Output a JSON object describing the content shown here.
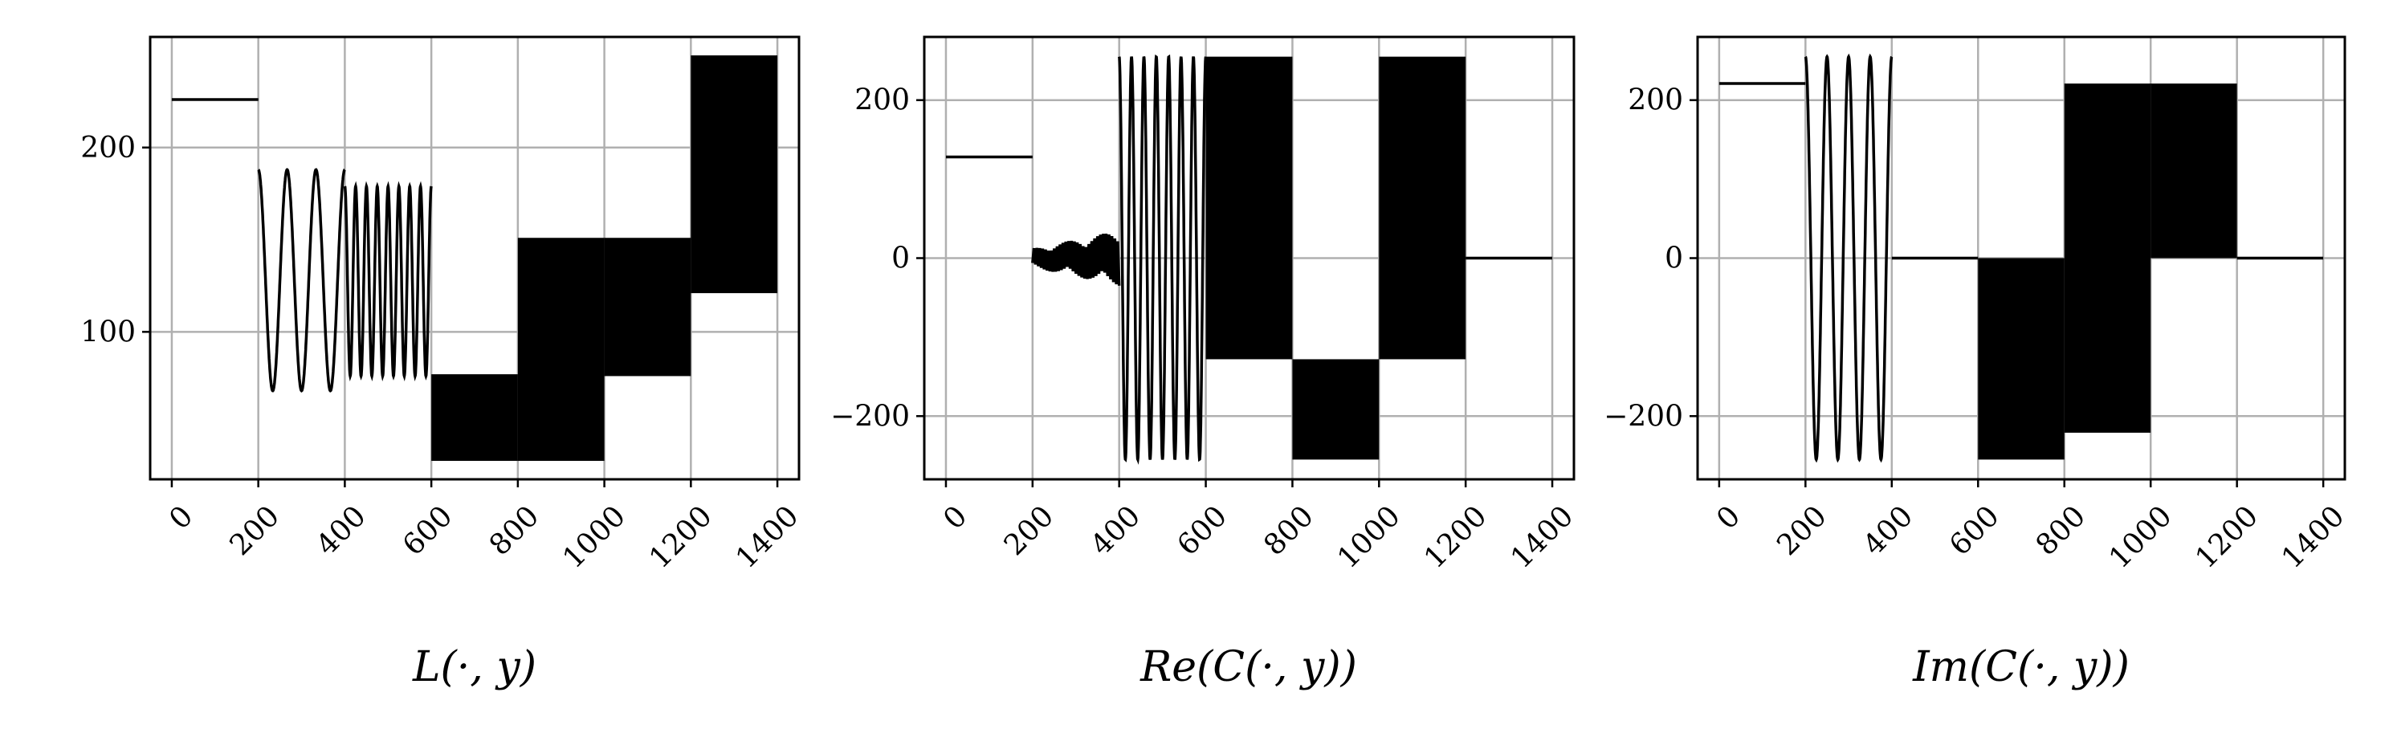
{
  "figure": {
    "background": "#ffffff",
    "line_color": "#000000",
    "grid_color": "#b0b0b0",
    "grid": true
  },
  "chart_data": [
    {
      "type": "line",
      "title": "",
      "xlabel": "L(·, y)",
      "ylabel": "",
      "xlim": [
        -50,
        1450
      ],
      "ylim": [
        20,
        260
      ],
      "xticks": [
        0,
        200,
        400,
        600,
        800,
        1000,
        1200,
        1400
      ],
      "xtick_labels": [
        "0",
        "200",
        "400",
        "600",
        "800",
        "1000",
        "1200",
        "1400"
      ],
      "yticks": [
        100,
        200
      ],
      "ytick_labels": [
        "100",
        "200"
      ],
      "segments": [
        {
          "x_range": [
            0,
            200
          ],
          "kind": "constant",
          "value": 226
        },
        {
          "x_range": [
            200,
            400
          ],
          "kind": "oscillation",
          "min": 68,
          "max": 188,
          "cycles": 3
        },
        {
          "x_range": [
            400,
            600
          ],
          "kind": "oscillation",
          "min": 76,
          "max": 179,
          "cycles": 8
        },
        {
          "x_range": [
            600,
            800
          ],
          "kind": "band",
          "min": 30,
          "max": 77
        },
        {
          "x_range": [
            800,
            1000
          ],
          "kind": "band",
          "min": 30,
          "max": 151
        },
        {
          "x_range": [
            1000,
            1200
          ],
          "kind": "band",
          "min": 76,
          "max": 151
        },
        {
          "x_range": [
            1200,
            1400
          ],
          "kind": "band",
          "min": 121,
          "max": 250
        }
      ]
    },
    {
      "type": "line",
      "title": "",
      "xlabel": "Re(C(·, y))",
      "ylabel": "",
      "xlim": [
        -50,
        1450
      ],
      "ylim": [
        -280,
        280
      ],
      "xticks": [
        0,
        200,
        400,
        600,
        800,
        1000,
        1200,
        1400
      ],
      "xtick_labels": [
        "0",
        "200",
        "400",
        "600",
        "800",
        "1000",
        "1200",
        "1400"
      ],
      "yticks": [
        -200,
        0,
        200
      ],
      "ytick_labels": [
        "−200",
        "0",
        "200"
      ],
      "segments": [
        {
          "x_range": [
            0,
            200
          ],
          "kind": "constant",
          "value": 128
        },
        {
          "x_range": [
            200,
            400
          ],
          "kind": "noise",
          "min": -35,
          "max": 35,
          "center": 0
        },
        {
          "x_range": [
            400,
            600
          ],
          "kind": "oscillation",
          "min": -255,
          "max": 255,
          "cycles": 7
        },
        {
          "x_range": [
            600,
            800
          ],
          "kind": "band",
          "min": -128,
          "max": 255
        },
        {
          "x_range": [
            800,
            1000
          ],
          "kind": "band",
          "min": -255,
          "max": -128
        },
        {
          "x_range": [
            1000,
            1200
          ],
          "kind": "band",
          "min": -128,
          "max": 255
        },
        {
          "x_range": [
            1200,
            1400
          ],
          "kind": "constant",
          "value": 0
        }
      ]
    },
    {
      "type": "line",
      "title": "",
      "xlabel": "Im(C(·, y))",
      "ylabel": "",
      "xlim": [
        -50,
        1450
      ],
      "ylim": [
        -280,
        280
      ],
      "xticks": [
        0,
        200,
        400,
        600,
        800,
        1000,
        1200,
        1400
      ],
      "xtick_labels": [
        "0",
        "200",
        "400",
        "600",
        "800",
        "1000",
        "1200",
        "1400"
      ],
      "yticks": [
        -200,
        0,
        200
      ],
      "ytick_labels": [
        "−200",
        "0",
        "200"
      ],
      "segments": [
        {
          "x_range": [
            0,
            200
          ],
          "kind": "constant",
          "value": 221
        },
        {
          "x_range": [
            200,
            400
          ],
          "kind": "oscillation",
          "min": -255,
          "max": 255,
          "cycles": 4
        },
        {
          "x_range": [
            400,
            600
          ],
          "kind": "constant",
          "value": 0
        },
        {
          "x_range": [
            600,
            800
          ],
          "kind": "band",
          "min": -255,
          "max": 0
        },
        {
          "x_range": [
            800,
            1000
          ],
          "kind": "band",
          "min": -221,
          "max": 221
        },
        {
          "x_range": [
            1000,
            1200
          ],
          "kind": "band",
          "min": 0,
          "max": 221
        },
        {
          "x_range": [
            1200,
            1400
          ],
          "kind": "constant",
          "value": 0
        }
      ]
    }
  ]
}
